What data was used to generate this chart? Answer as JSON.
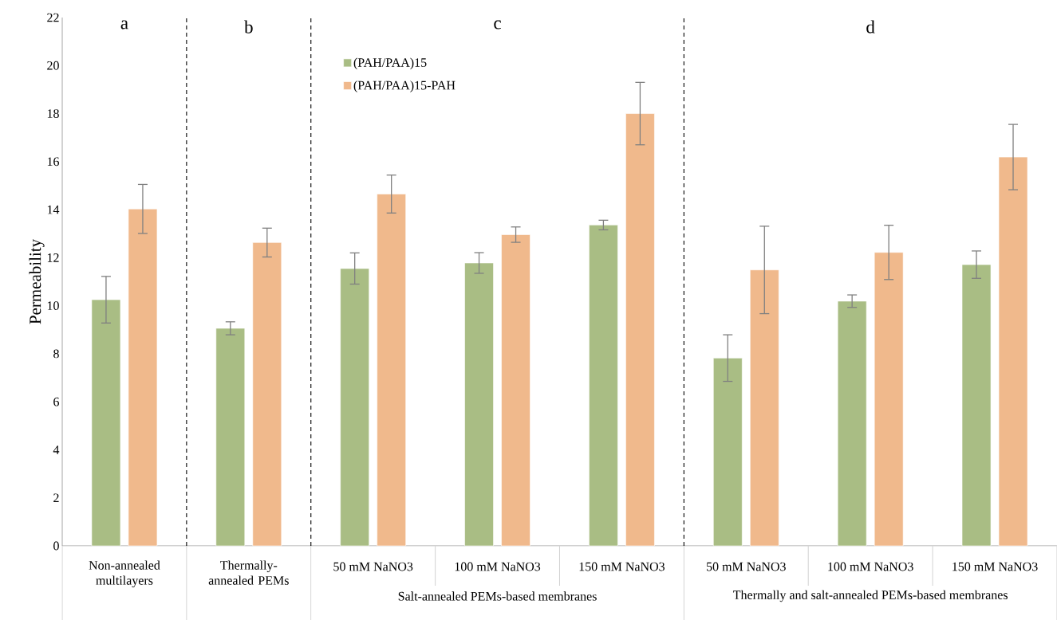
{
  "chart_data": {
    "type": "bar",
    "ylabel": "Permeability",
    "categories": [
      "Non-annealed multilayers",
      "Thermally-annealed PEMs",
      "50 mM NaNO3",
      "100 mM NaNO3",
      "150 mM NaNO3",
      "50 mM NaNO3",
      "100 mM NaNO3",
      "150 mM NaNO3"
    ],
    "series": [
      {
        "name": "(PAH/PAA)15",
        "color": "#a9bd84",
        "values": [
          10.25,
          9.06,
          11.55,
          11.78,
          13.36,
          7.82,
          10.19,
          11.71
        ],
        "errors": [
          0.97,
          0.27,
          0.65,
          0.43,
          0.2,
          0.97,
          0.26,
          0.57
        ]
      },
      {
        "name": "(PAH/PAA)15-PAH",
        "color": "#f0b98c",
        "values": [
          14.03,
          12.63,
          14.65,
          12.96,
          18.0,
          11.49,
          12.22,
          16.19
        ],
        "errors": [
          1.02,
          0.6,
          0.79,
          0.32,
          1.3,
          1.82,
          1.13,
          1.36
        ]
      }
    ],
    "ylim": [
      0,
      22
    ],
    "yticks": [
      0,
      2,
      4,
      6,
      8,
      10,
      12,
      14,
      16,
      18,
      20,
      22
    ],
    "annotations": [
      "a",
      "b",
      "c",
      "d",
      "Salt-annealed PEMs-based membranes",
      "Thermally and salt-annealed PEMs-based membranes"
    ],
    "legend": "top"
  }
}
